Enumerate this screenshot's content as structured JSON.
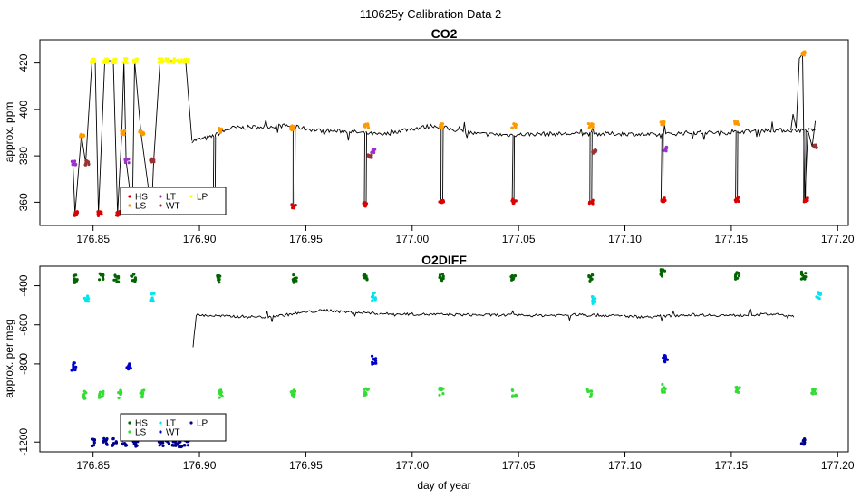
{
  "title": "110625y   Calibration Data 2",
  "chart_data": [
    {
      "type": "line",
      "title": "CO2",
      "ylabel": "approx. ppm",
      "xlabel": "",
      "xlim": [
        176.825,
        177.205
      ],
      "ylim": [
        350,
        430
      ],
      "xticks": [
        "176.85",
        "176.90",
        "176.95",
        "177.00",
        "177.05",
        "177.10",
        "177.15",
        "177.20"
      ],
      "yticks": [
        "360",
        "380",
        "400",
        "420"
      ],
      "grid": false,
      "legend_position": "bottom-left",
      "baseline": [
        [
          176.8965,
          386.5
        ],
        [
          176.905,
          388
        ],
        [
          176.915,
          392
        ],
        [
          176.93,
          392.5
        ],
        [
          176.941,
          393
        ],
        [
          176.955,
          391
        ],
        [
          176.97,
          390.5
        ],
        [
          176.986,
          389
        ],
        [
          176.995,
          391
        ],
        [
          177.01,
          393
        ],
        [
          177.03,
          389.5
        ],
        [
          177.045,
          389
        ],
        [
          177.06,
          389.5
        ],
        [
          177.08,
          389.5
        ],
        [
          177.1,
          389.5
        ],
        [
          177.115,
          389
        ],
        [
          177.13,
          390
        ],
        [
          177.148,
          390
        ],
        [
          177.165,
          391
        ],
        [
          177.18,
          391
        ],
        [
          177.19,
          391
        ]
      ],
      "dips": [
        [
          176.841,
          355
        ],
        [
          176.852,
          355
        ],
        [
          176.861,
          355
        ],
        [
          176.868,
          356
        ],
        [
          176.877,
          356
        ],
        [
          176.9065,
          360
        ],
        [
          176.944,
          359
        ],
        [
          176.9775,
          359
        ],
        [
          177.0135,
          360
        ],
        [
          177.047,
          360
        ],
        [
          177.0835,
          360
        ],
        [
          177.117,
          361
        ],
        [
          177.152,
          361
        ],
        [
          177.184,
          361
        ]
      ],
      "series": [
        {
          "name": "HS",
          "color": "#dd0000",
          "points": [
            [
              176.8415,
              355
            ],
            [
              176.8525,
              355
            ],
            [
              176.8615,
              355
            ],
            [
              176.8685,
              356
            ],
            [
              176.8775,
              356
            ],
            [
              176.9065,
              360
            ],
            [
              176.944,
              358.5
            ],
            [
              176.9775,
              359
            ],
            [
              177.0135,
              360
            ],
            [
              177.0475,
              360.5
            ],
            [
              177.0835,
              360
            ],
            [
              177.1175,
              361
            ],
            [
              177.1525,
              361
            ],
            [
              177.1845,
              361
            ]
          ]
        },
        {
          "name": "LS",
          "color": "#ff9900",
          "points": [
            [
              176.8445,
              389
            ],
            [
              176.8635,
              390
            ],
            [
              176.8725,
              390
            ],
            [
              176.909,
              391
            ],
            [
              176.9435,
              392
            ],
            [
              176.978,
              393
            ],
            [
              177.013,
              393
            ],
            [
              177.0475,
              393
            ],
            [
              177.0835,
              393
            ],
            [
              177.1175,
              394
            ],
            [
              177.152,
              394
            ],
            [
              177.1835,
              424
            ]
          ]
        },
        {
          "name": "LT",
          "color": "#9932cc",
          "points": [
            [
              176.8405,
              377
            ],
            [
              176.8655,
              378
            ],
            [
              176.9815,
              382
            ],
            [
              177.1185,
              383
            ]
          ]
        },
        {
          "name": "WT",
          "color": "#993333",
          "points": [
            [
              176.8465,
              377
            ],
            [
              176.8775,
              378
            ],
            [
              176.9795,
              380
            ],
            [
              177.085,
              382
            ],
            [
              177.189,
              384
            ]
          ]
        },
        {
          "name": "LP",
          "color": "#ffff00",
          "points": [
            [
              176.8495,
              421
            ],
            [
              176.8555,
              421
            ],
            [
              176.8595,
              421
            ],
            [
              176.8645,
              421
            ],
            [
              176.8695,
              421
            ],
            [
              176.8815,
              421
            ],
            [
              176.8845,
              421
            ],
            [
              176.8875,
              421
            ],
            [
              176.8905,
              421
            ],
            [
              176.8935,
              421
            ]
          ]
        }
      ]
    },
    {
      "type": "line",
      "title": "O2DIFF",
      "ylabel": "approx. per meg",
      "xlabel": "day of year",
      "xlim": [
        176.825,
        177.205
      ],
      "ylim": [
        -1250,
        -300
      ],
      "xticks": [
        "176.85",
        "176.90",
        "176.95",
        "177.00",
        "177.05",
        "177.10",
        "177.15",
        "177.20"
      ],
      "yticks": [
        "-400",
        "-600",
        "-800",
        "-1200"
      ],
      "grid": false,
      "legend_position": "bottom-left",
      "baseline": [
        [
          176.897,
          -700
        ],
        [
          176.8985,
          -550
        ],
        [
          176.91,
          -555
        ],
        [
          176.93,
          -560
        ],
        [
          176.94,
          -550
        ],
        [
          176.95,
          -535
        ],
        [
          176.96,
          -525
        ],
        [
          176.97,
          -535
        ],
        [
          176.99,
          -545
        ],
        [
          177.0,
          -545
        ],
        [
          177.02,
          -548
        ],
        [
          177.04,
          -550
        ],
        [
          177.06,
          -552
        ],
        [
          177.08,
          -548
        ],
        [
          177.1,
          -555
        ],
        [
          177.11,
          -560
        ],
        [
          177.13,
          -548
        ],
        [
          177.15,
          -552
        ],
        [
          177.17,
          -545
        ],
        [
          177.18,
          -560
        ]
      ],
      "series": [
        {
          "name": "HS",
          "color": "#006400",
          "points": [
            [
              176.8415,
              -365
            ],
            [
              176.8535,
              -355
            ],
            [
              176.8605,
              -360
            ],
            [
              176.8685,
              -360
            ],
            [
              176.909,
              -365
            ],
            [
              176.9445,
              -365
            ],
            [
              176.9775,
              -352
            ],
            [
              177.0135,
              -355
            ],
            [
              177.047,
              -358
            ],
            [
              177.0835,
              -355
            ],
            [
              177.1175,
              -335
            ],
            [
              177.1525,
              -350
            ],
            [
              177.1835,
              -348
            ]
          ]
        },
        {
          "name": "LS",
          "color": "#33dd33",
          "points": [
            [
              176.8455,
              -960
            ],
            [
              176.8535,
              -955
            ],
            [
              176.8625,
              -955
            ],
            [
              176.8725,
              -955
            ],
            [
              176.9095,
              -955
            ],
            [
              176.9435,
              -952
            ],
            [
              176.978,
              -945
            ],
            [
              177.0135,
              -940
            ],
            [
              177.0475,
              -950
            ],
            [
              177.083,
              -950
            ],
            [
              177.1175,
              -925
            ],
            [
              177.1525,
              -938
            ],
            [
              177.1885,
              -935
            ]
          ]
        },
        {
          "name": "LT",
          "color": "#00e5ee",
          "points": [
            [
              176.8465,
              -465
            ],
            [
              176.8775,
              -460
            ],
            [
              176.9815,
              -455
            ],
            [
              177.085,
              -475
            ],
            [
              177.1905,
              -445
            ]
          ]
        },
        {
          "name": "WT",
          "color": "#0000cc",
          "points": [
            [
              176.8405,
              -815
            ],
            [
              176.8665,
              -810
            ],
            [
              176.9815,
              -780
            ],
            [
              177.1185,
              -775
            ]
          ]
        },
        {
          "name": "LP",
          "color": "#00008b",
          "points": [
            [
              176.8495,
              -1200
            ],
            [
              176.8555,
              -1200
            ],
            [
              176.8595,
              -1200
            ],
            [
              176.8645,
              -1200
            ],
            [
              176.8695,
              -1205
            ],
            [
              176.8815,
              -1205
            ],
            [
              176.8845,
              -1205
            ],
            [
              176.8875,
              -1205
            ],
            [
              176.8905,
              -1205
            ],
            [
              176.8935,
              -1210
            ],
            [
              177.1835,
              -1200
            ]
          ]
        }
      ]
    }
  ]
}
